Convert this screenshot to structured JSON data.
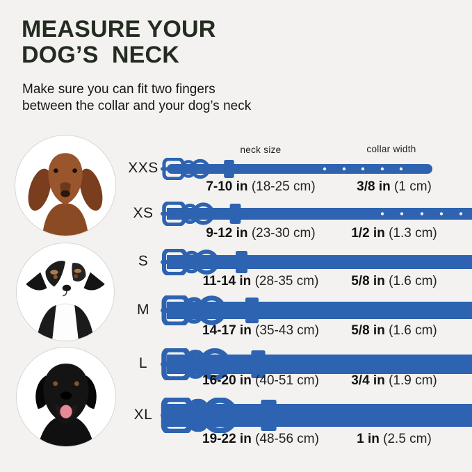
{
  "header": {
    "title_line1": "MEASURE YOUR",
    "title_line2": "DOG’S  NECK",
    "subtitle_line1": "Make sure you can fit two fingers",
    "subtitle_line2": "between the collar and your dog’s neck"
  },
  "columns": {
    "neck_size": "neck size",
    "collar_width": "collar width"
  },
  "colors": {
    "background": "#f3f2f0",
    "title": "#242c21",
    "collar_blue": "#2d63b0",
    "hole_white": "#eef1f5"
  },
  "dogs": [
    {
      "name": "dachshund"
    },
    {
      "name": "australian-shepherd"
    },
    {
      "name": "black-labrador"
    }
  ],
  "sizes": [
    {
      "size": "XXS",
      "neck_in": "7-10 in",
      "neck_cm": "(18-25 cm)",
      "width_in": "3/8 in",
      "width_cm": "(1 cm)"
    },
    {
      "size": "XS",
      "neck_in": "9-12 in",
      "neck_cm": "(23-30 cm)",
      "width_in": "1/2 in",
      "width_cm": "(1.3 cm)"
    },
    {
      "size": "S",
      "neck_in": "11-14 in",
      "neck_cm": "(28-35 cm)",
      "width_in": "5/8 in",
      "width_cm": "(1.6 cm)"
    },
    {
      "size": "M",
      "neck_in": "14-17 in",
      "neck_cm": "(35-43 cm)",
      "width_in": "5/8 in",
      "width_cm": "(1.6 cm)"
    },
    {
      "size": "L",
      "neck_in": "16-20 in",
      "neck_cm": "(40-51 cm)",
      "width_in": "3/4 in",
      "width_cm": "(1.9 cm)"
    },
    {
      "size": "XL",
      "neck_in": "19-22 in",
      "neck_cm": "(48-56 cm)",
      "width_in": "1 in",
      "width_cm": "(2.5 cm)"
    }
  ]
}
